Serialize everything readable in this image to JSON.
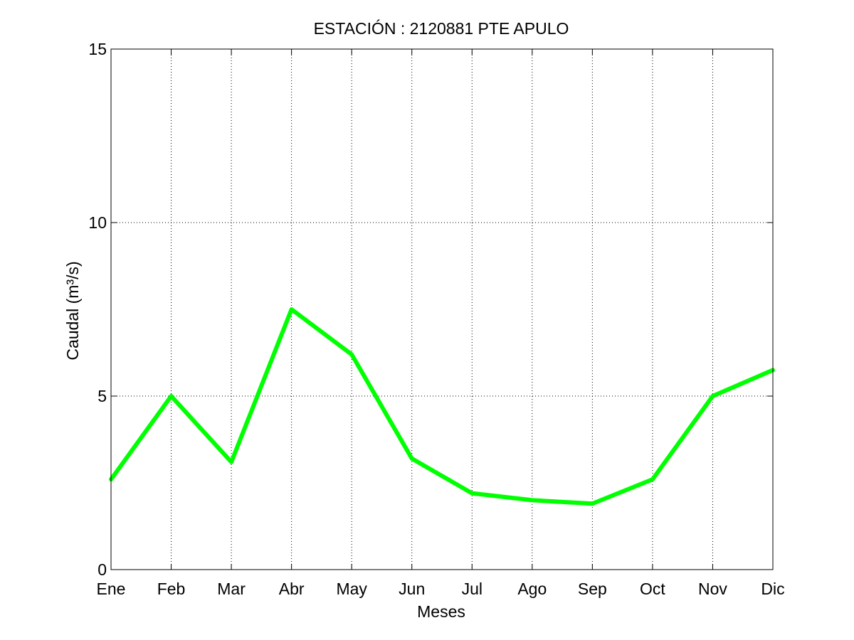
{
  "chart_data": {
    "type": "line",
    "title": "ESTACIÓN :  2120881  PTE APULO",
    "xlabel": "Meses",
    "ylabel": "Caudal (m³/s)",
    "categories": [
      "Ene",
      "Feb",
      "Mar",
      "Abr",
      "May",
      "Jun",
      "Jul",
      "Ago",
      "Sep",
      "Oct",
      "Nov",
      "Dic"
    ],
    "series": [
      {
        "values": [
          2.6,
          5.0,
          3.1,
          7.5,
          6.2,
          3.2,
          2.2,
          2.0,
          1.9,
          2.6,
          5.0,
          5.75
        ],
        "color": "#00ff00"
      }
    ],
    "ylim": [
      0,
      15
    ],
    "yticks": [
      0,
      5,
      10,
      15
    ],
    "grid": true,
    "legend": "none"
  }
}
